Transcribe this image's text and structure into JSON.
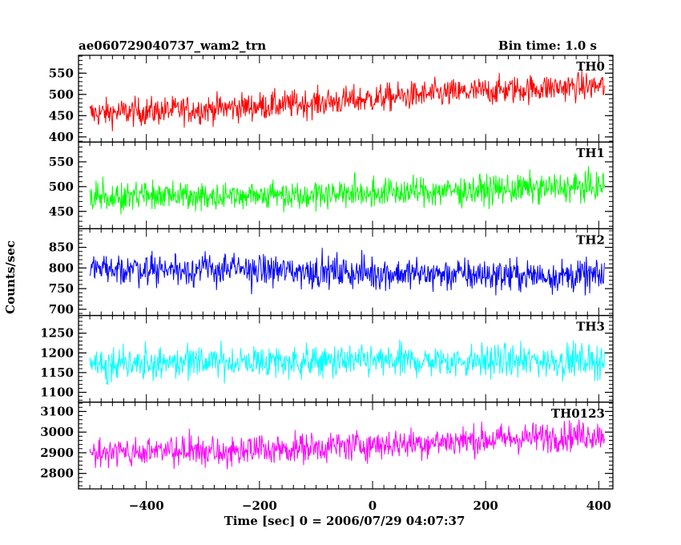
{
  "header": {
    "title": "ae060729040737_wam2_trn",
    "bin_time": "Bin time: 1.0 s"
  },
  "chart_data": {
    "type": "line",
    "xlabel": "Time [sec] 0 = 2006/07/29 04:07:37",
    "ylabel": "Counts/sec",
    "xlim": [
      -520,
      425
    ],
    "x_ticks": [
      -400,
      -200,
      0,
      200,
      400
    ],
    "x_tick_labels": [
      "−400",
      "−200",
      "0",
      "200",
      "400"
    ],
    "x_range": [
      -500,
      410
    ],
    "panels": [
      {
        "name": "TH0",
        "color": "#ff0000",
        "ylim": [
          388,
          592
        ],
        "yticks": [
          400,
          450,
          500,
          550
        ],
        "trend": [
          [
            -500,
            455
          ],
          [
            -300,
            465
          ],
          [
            -100,
            480
          ],
          [
            100,
            500
          ],
          [
            300,
            515
          ],
          [
            410,
            520
          ]
        ],
        "noise": 28
      },
      {
        "name": "TH1",
        "color": "#00ff00",
        "ylim": [
          415,
          590
        ],
        "yticks": [
          450,
          500,
          550
        ],
        "trend": [
          [
            -500,
            480
          ],
          [
            -200,
            483
          ],
          [
            100,
            490
          ],
          [
            410,
            500
          ]
        ],
        "noise": 25
      },
      {
        "name": "TH2",
        "color": "#0000ff",
        "ylim": [
          685,
          895
        ],
        "yticks": [
          700,
          750,
          800,
          850
        ],
        "trend": [
          [
            -500,
            800
          ],
          [
            -200,
            795
          ],
          [
            100,
            785
          ],
          [
            410,
            780
          ]
        ],
        "noise": 33
      },
      {
        "name": "TH3",
        "color": "#00ffff",
        "ylim": [
          1075,
          1295
        ],
        "yticks": [
          1100,
          1150,
          1200,
          1250
        ],
        "trend": [
          [
            -500,
            1175
          ],
          [
            0,
            1178
          ],
          [
            410,
            1180
          ]
        ],
        "noise": 35
      },
      {
        "name": "TH0123",
        "color": "#ff00ff",
        "ylim": [
          2725,
          3145
        ],
        "yticks": [
          2800,
          2900,
          3000,
          3100
        ],
        "trend": [
          [
            -500,
            2900
          ],
          [
            -200,
            2915
          ],
          [
            100,
            2950
          ],
          [
            410,
            2990
          ]
        ],
        "noise": 62
      }
    ]
  }
}
